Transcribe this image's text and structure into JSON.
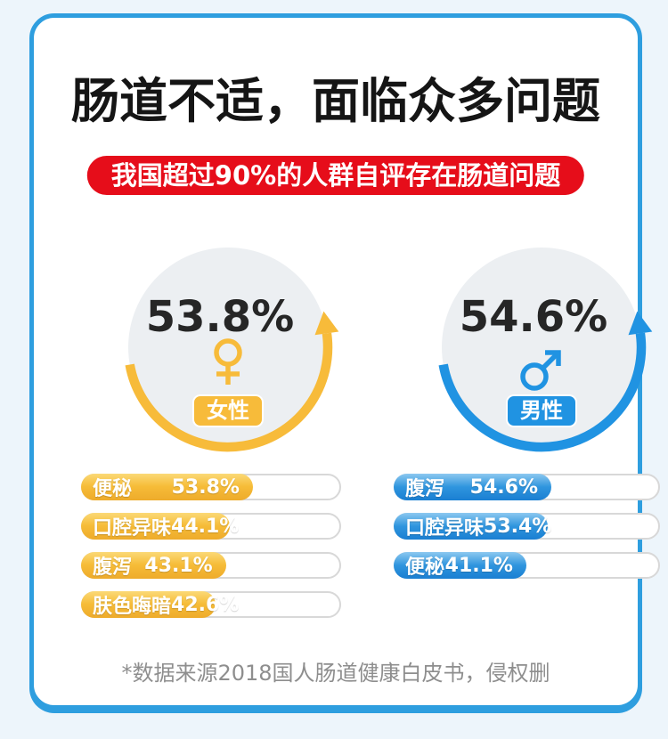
{
  "colors": {
    "accent_yellow": "#f7bb3a",
    "accent_blue": "#2093e2",
    "badge_red": "#e60d1a",
    "card_border": "#2e9edf",
    "page_bg": "#edf5fb",
    "circle_bg": "#eceff2"
  },
  "chart_data": {
    "type": "bar",
    "title": "肠道不适，面临众多问题",
    "subtitle": "我国超过90%的人群自评存在肠道问题",
    "source_note": "*数据来源2018国人肠道健康白皮书，侵权删",
    "layout_hints": {
      "two_gauge_circles_with_arrow_arcs": true,
      "bars_are_rounded_pills_with_labels_inside_fill": true
    },
    "groups": [
      {
        "name": "女性",
        "symbol": "female",
        "overall_value": 53.8,
        "overall_display": "53.8%",
        "color": "#f7bb3a",
        "items": [
          {
            "label": "便秘",
            "value": 53.8,
            "display": "53.8%",
            "bar_fill_pct": 67
          },
          {
            "label": "口腔异味",
            "value": 44.1,
            "display": "44.1%",
            "bar_fill_pct": 58
          },
          {
            "label": "腹泻",
            "value": 43.1,
            "display": "43.1%",
            "bar_fill_pct": 56.5
          },
          {
            "label": "肤色晦暗",
            "value": 42.6,
            "display": "42.6%",
            "bar_fill_pct": 52.5
          }
        ]
      },
      {
        "name": "男性",
        "symbol": "male",
        "overall_value": 54.6,
        "overall_display": "54.6%",
        "color": "#2093e2",
        "items": [
          {
            "label": "腹泻",
            "value": 54.6,
            "display": "54.6%",
            "bar_fill_pct": 60
          },
          {
            "label": "口腔异味",
            "value": 53.4,
            "display": "53.4%",
            "bar_fill_pct": 58.5
          },
          {
            "label": "便秘",
            "value": 41.1,
            "display": "41.1%",
            "bar_fill_pct": 50.5
          }
        ]
      }
    ]
  }
}
